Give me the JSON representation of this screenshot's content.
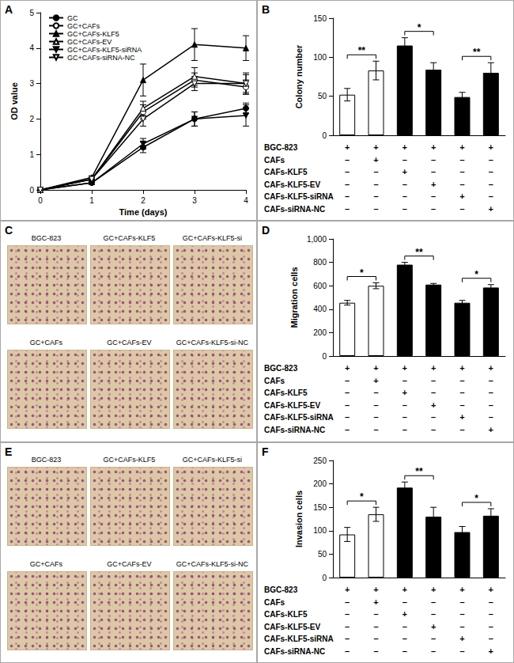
{
  "chart_data": [
    {
      "panel": "A",
      "type": "line",
      "x_label": "Time (days)",
      "y_label": "OD value",
      "x": [
        0,
        1,
        2,
        3,
        4
      ],
      "xlim": [
        0,
        4
      ],
      "xticks": [
        0,
        1,
        2,
        3,
        4
      ],
      "ylim": [
        0,
        5
      ],
      "yticks": [
        0,
        1,
        2,
        3,
        4,
        5
      ],
      "grid": false,
      "legend": "upper left",
      "series": [
        {
          "name": "GC",
          "color": "#000000",
          "marker": "circle",
          "values": [
            0,
            0.2,
            1.2,
            2.0,
            2.3
          ],
          "errors": [
            0,
            0.05,
            0.15,
            0.2,
            0.15
          ]
        },
        {
          "name": "GC+CAFs",
          "color": "#000000",
          "marker": "circle-open",
          "values": [
            0,
            0.3,
            2.2,
            3.1,
            2.9
          ],
          "errors": [
            0,
            0.05,
            0.2,
            0.2,
            0.2
          ]
        },
        {
          "name": "GC+CAFs-KLF5",
          "color": "#000000",
          "marker": "triangle",
          "values": [
            0,
            0.35,
            3.1,
            4.1,
            4.0
          ],
          "errors": [
            0,
            0.05,
            0.45,
            0.45,
            0.35
          ]
        },
        {
          "name": "GC+CAFs-EV",
          "color": "#000000",
          "marker": "triangle-open",
          "values": [
            0,
            0.3,
            2.3,
            3.2,
            3.0
          ],
          "errors": [
            0,
            0.05,
            0.2,
            0.25,
            0.3
          ]
        },
        {
          "name": "GC+CAFs-KLF5-siRNA",
          "color": "#000000",
          "marker": "triangle-down",
          "values": [
            0,
            0.2,
            1.3,
            2.0,
            2.1
          ],
          "errors": [
            0,
            0.05,
            0.15,
            0.2,
            0.3
          ]
        },
        {
          "name": "GC+CAFs-siRNA-NC",
          "color": "#000000",
          "marker": "triangle-down-open",
          "values": [
            0,
            0.3,
            2.0,
            3.0,
            3.0
          ],
          "errors": [
            0,
            0.05,
            0.2,
            0.2,
            0.25
          ]
        }
      ]
    },
    {
      "panel": "B",
      "type": "bar",
      "y_label": "Colony number",
      "values": [
        52,
        83,
        115,
        84,
        49,
        80
      ],
      "errors": [
        8,
        12,
        10,
        9,
        6,
        13
      ],
      "colors": [
        "#ffffff",
        "#ffffff",
        "#000000",
        "#000000",
        "#000000",
        "#000000"
      ],
      "ylim": [
        0,
        150
      ],
      "yticks": [
        0,
        50,
        100,
        150
      ],
      "grid": false,
      "tick_labels": "y",
      "annotations": [
        {
          "from": 0,
          "to": 1,
          "text": "**"
        },
        {
          "from": 2,
          "to": 3,
          "text": "*"
        },
        {
          "from": 4,
          "to": 5,
          "text": "**"
        }
      ],
      "conditions": [
        {
          "label": "BGC-823",
          "signs": [
            "+",
            "+",
            "+",
            "+",
            "+",
            "+"
          ]
        },
        {
          "label": "CAFs",
          "signs": [
            "–",
            "+",
            "–",
            "–",
            "–",
            "–"
          ]
        },
        {
          "label": "CAFs-KLF5",
          "signs": [
            "–",
            "–",
            "+",
            "–",
            "–",
            "–"
          ]
        },
        {
          "label": "CAFs-KLF5-EV",
          "signs": [
            "–",
            "–",
            "–",
            "+",
            "–",
            "–"
          ]
        },
        {
          "label": "CAFs-KLF5-siRNA",
          "signs": [
            "–",
            "–",
            "–",
            "–",
            "+",
            "–"
          ]
        },
        {
          "label": "CAFs-siRNA-NC",
          "signs": [
            "–",
            "–",
            "–",
            "–",
            "–",
            "+"
          ]
        }
      ]
    },
    {
      "panel": "D",
      "type": "bar",
      "y_label": "Migration cells",
      "values": [
        455,
        600,
        780,
        610,
        455,
        585
      ],
      "errors": [
        20,
        25,
        20,
        10,
        20,
        25
      ],
      "colors": [
        "#ffffff",
        "#ffffff",
        "#000000",
        "#000000",
        "#000000",
        "#000000"
      ],
      "ylim": [
        0,
        1000
      ],
      "yticks": [
        0,
        200,
        400,
        600,
        800,
        1000
      ],
      "grid": false,
      "tick_labels": "y",
      "annotations": [
        {
          "from": 0,
          "to": 1,
          "text": "*"
        },
        {
          "from": 2,
          "to": 3,
          "text": "**"
        },
        {
          "from": 4,
          "to": 5,
          "text": "*"
        }
      ],
      "conditions": [
        {
          "label": "BGC-823",
          "signs": [
            "+",
            "+",
            "+",
            "+",
            "+",
            "+"
          ]
        },
        {
          "label": "CAFs",
          "signs": [
            "–",
            "+",
            "–",
            "–",
            "–",
            "–"
          ]
        },
        {
          "label": "CAFs-KLF5",
          "signs": [
            "–",
            "–",
            "+",
            "–",
            "–",
            "–"
          ]
        },
        {
          "label": "CAFs-KLF5-EV",
          "signs": [
            "–",
            "–",
            "–",
            "+",
            "–",
            "–"
          ]
        },
        {
          "label": "CAFs-KLF5-siRNA",
          "signs": [
            "–",
            "–",
            "–",
            "–",
            "+",
            "–"
          ]
        },
        {
          "label": "CAFs-siRNA-NC",
          "signs": [
            "–",
            "–",
            "–",
            "–",
            "–",
            "+"
          ]
        }
      ]
    },
    {
      "panel": "F",
      "type": "bar",
      "y_label": "Invasion cells",
      "values": [
        92,
        135,
        192,
        130,
        97,
        132
      ],
      "errors": [
        15,
        15,
        12,
        20,
        12,
        15
      ],
      "colors": [
        "#ffffff",
        "#ffffff",
        "#000000",
        "#000000",
        "#000000",
        "#000000"
      ],
      "ylim": [
        0,
        250
      ],
      "yticks": [
        0,
        50,
        100,
        150,
        200,
        250
      ],
      "grid": false,
      "tick_labels": "y",
      "annotations": [
        {
          "from": 0,
          "to": 1,
          "text": "*"
        },
        {
          "from": 2,
          "to": 3,
          "text": "**"
        },
        {
          "from": 4,
          "to": 5,
          "text": "*"
        }
      ],
      "conditions": [
        {
          "label": "BGC-823",
          "signs": [
            "+",
            "+",
            "+",
            "+",
            "+",
            "+"
          ]
        },
        {
          "label": "CAFs",
          "signs": [
            "–",
            "+",
            "–",
            "–",
            "–",
            "–"
          ]
        },
        {
          "label": "CAFs-KLF5",
          "signs": [
            "–",
            "–",
            "+",
            "–",
            "–",
            "–"
          ]
        },
        {
          "label": "CAFs-KLF5-EV",
          "signs": [
            "–",
            "–",
            "–",
            "+",
            "–",
            "–"
          ]
        },
        {
          "label": "CAFs-KLF5-siRNA",
          "signs": [
            "–",
            "–",
            "–",
            "–",
            "+",
            "–"
          ]
        },
        {
          "label": "CAFs-siRNA-NC",
          "signs": [
            "–",
            "–",
            "–",
            "–",
            "–",
            "+"
          ]
        }
      ]
    }
  ],
  "images": [
    {
      "panel": "C",
      "labels": [
        [
          "BGC-823",
          "GC+CAFs-KLF5",
          "GC+CAFs-KLF5-si"
        ],
        [
          "GC+CAFs",
          "GC+CAFs-EV",
          "GC+CAFs-KLF5-si-NC"
        ]
      ]
    },
    {
      "panel": "E",
      "labels": [
        [
          "BGC-823",
          "GC+CAFs-KLF5",
          "GC+CAFs-KLF5-si"
        ],
        [
          "GC+CAFs",
          "GC+CAFs-EV",
          "GC+CAFs-KLF5-si-NC"
        ]
      ]
    }
  ]
}
